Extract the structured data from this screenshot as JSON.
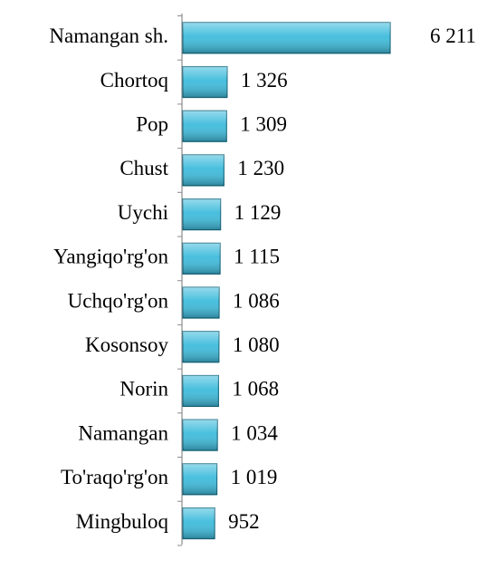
{
  "chart_data": {
    "type": "bar",
    "orientation": "horizontal",
    "categories": [
      "Namangan sh.",
      "Chortoq",
      "Pop",
      "Chust",
      "Uychi",
      "Yangiqo'rg'on",
      "Uchqo'rg'on",
      "Kosonsoy",
      "Norin",
      "Namangan",
      "To'raqo'rg'on",
      "Mingbuloq"
    ],
    "values": [
      6211,
      1326,
      1309,
      1230,
      1129,
      1115,
      1086,
      1080,
      1068,
      1034,
      1019,
      952
    ],
    "value_labels": [
      "6 211",
      "1 326",
      "1 309",
      "1 230",
      "1 129",
      "1 115",
      "1 086",
      "1 080",
      "1 068",
      "1 034",
      "1 019",
      "952"
    ],
    "color": "#3fbcdc"
  }
}
